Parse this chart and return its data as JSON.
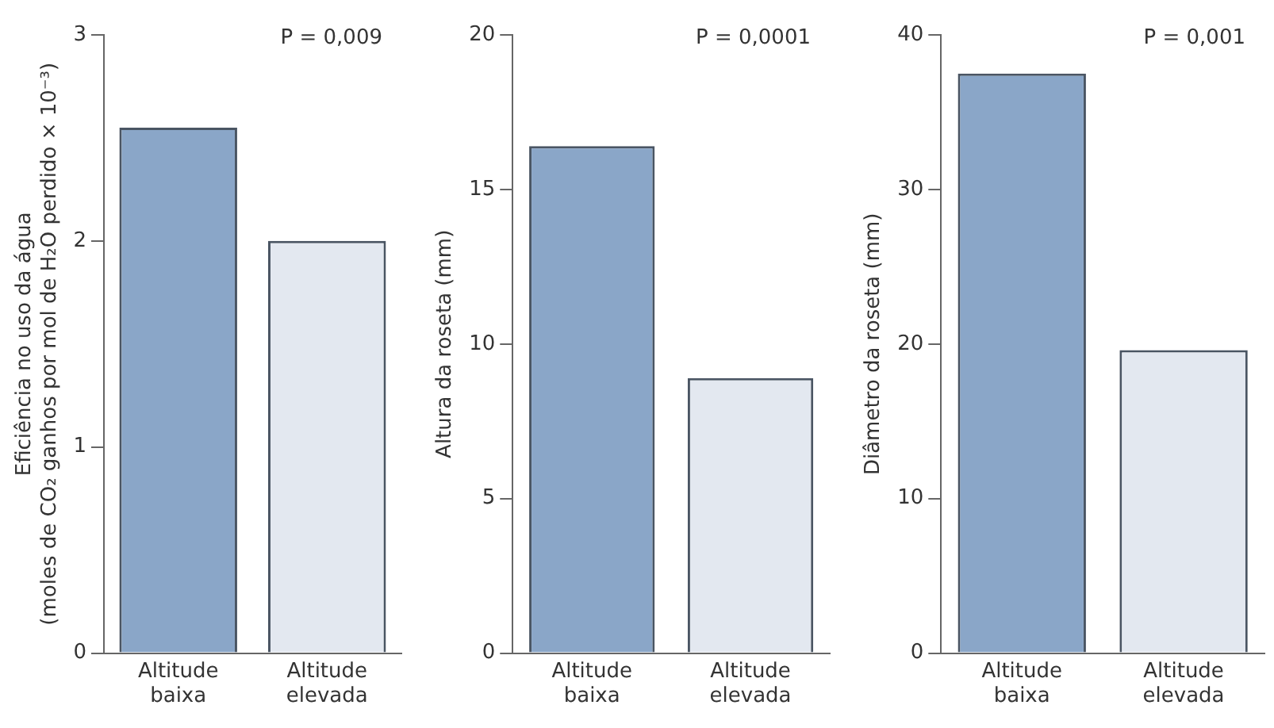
{
  "chart_data": [
    {
      "type": "bar",
      "ylabel": "Eficiência no uso da água\n(moles de CO₂ ganhos por mol de H₂O perdido × 10⁻³)",
      "annotations": [
        "P = 0,009"
      ],
      "categories": [
        "Altitude baixa",
        "Altitude elevada"
      ],
      "values": [
        2.55,
        2.0
      ],
      "colors": [
        "#8aa6c8",
        "#e3e8f0"
      ],
      "ylim": [
        0,
        3
      ],
      "yticks": [
        0,
        1,
        2,
        3
      ],
      "grid": false,
      "legend": false
    },
    {
      "type": "bar",
      "ylabel": "Altura da roseta (mm)",
      "annotations": [
        "P = 0,0001"
      ],
      "categories": [
        "Altitude baixa",
        "Altitude elevada"
      ],
      "values": [
        16.4,
        8.9
      ],
      "colors": [
        "#8aa6c8",
        "#e3e8f0"
      ],
      "ylim": [
        0,
        20
      ],
      "yticks": [
        0,
        5,
        10,
        15,
        20
      ],
      "grid": false,
      "legend": false
    },
    {
      "type": "bar",
      "ylabel": "Diâmetro da roseta (mm)",
      "annotations": [
        "P = 0,001"
      ],
      "categories": [
        "Altitude baixa",
        "Altitude elevada"
      ],
      "values": [
        37.5,
        19.6
      ],
      "colors": [
        "#8aa6c8",
        "#e3e8f0"
      ],
      "ylim": [
        0,
        40
      ],
      "yticks": [
        0,
        10,
        20,
        30,
        40
      ],
      "grid": false,
      "legend": false
    }
  ]
}
